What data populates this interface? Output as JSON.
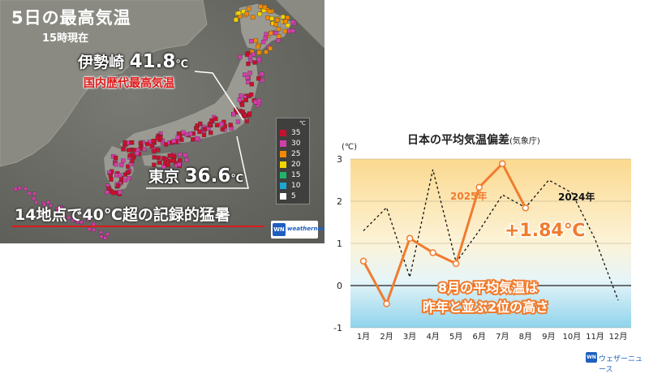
{
  "map": {
    "title": "5日の最高気温",
    "subtitle": "15時現在",
    "city1": {
      "name": "伊勢崎",
      "value": "41.8",
      "unit": "℃"
    },
    "record_label": "国内歴代最高気温",
    "city2": {
      "name": "東京",
      "value": "36.6",
      "unit": "℃"
    },
    "banner": "14地点で40℃超の記録的猛暑",
    "legend": {
      "unit": "℃",
      "items": [
        {
          "label": "35",
          "color": "#c8102e"
        },
        {
          "label": "30",
          "color": "#d23fa8"
        },
        {
          "label": "25",
          "color": "#f08a00"
        },
        {
          "label": "20",
          "color": "#f5d400"
        },
        {
          "label": "15",
          "color": "#1fb56b"
        },
        {
          "label": "10",
          "color": "#1aa7d6"
        },
        {
          "label": "5",
          "color": "#ffffff"
        }
      ]
    },
    "logo_text": "weathernews",
    "logo_mark": "WN"
  },
  "chart_title": "日本の平均気温偏差",
  "chart_title_source": "(気象庁)",
  "chart_data": {
    "type": "line",
    "categories": [
      "1月",
      "2月",
      "3月",
      "4月",
      "5月",
      "6月",
      "7月",
      "8月",
      "9月",
      "10月",
      "11月",
      "12月"
    ],
    "ylabel": "(℃)",
    "ylim": [
      -1,
      3
    ],
    "yticks": [
      "-1",
      "0",
      "1",
      "2",
      "3"
    ],
    "series": [
      {
        "name": "2025年",
        "values": [
          0.58,
          -0.43,
          1.12,
          0.78,
          0.52,
          2.33,
          2.89,
          1.84,
          null,
          null,
          null,
          null
        ],
        "color": "#f07c2e",
        "style": "solid"
      },
      {
        "name": "2024年",
        "values": [
          1.3,
          1.85,
          0.2,
          2.75,
          0.55,
          1.3,
          2.15,
          1.85,
          2.5,
          2.2,
          1.1,
          -0.35
        ],
        "color": "#111111",
        "style": "dashed"
      }
    ],
    "annotations": {
      "highlight_value": "+1.84℃",
      "caption_line1": "8月の平均気温は",
      "caption_line2": "昨年と並ぶ2位の高さ"
    }
  },
  "footer": {
    "logo_mark": "WN",
    "logo_text": "ウェザーニュース"
  }
}
